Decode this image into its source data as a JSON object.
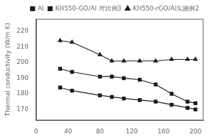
{
  "chart_data": {
    "type": "line",
    "ylabel": "Thermal conductivity (W/m K)",
    "x": [
      30,
      45,
      80,
      95,
      110,
      130,
      150,
      170,
      190,
      200
    ],
    "series": [
      {
        "name": "Al",
        "color": "#1a1a1a",
        "marker": "square",
        "values": [
          184,
          182,
          179,
          178,
          177,
          176,
          175,
          173,
          171,
          170
        ]
      },
      {
        "name": "KH550-GO/Al 对比例3",
        "color": "#1a1a1a",
        "marker": "square",
        "values": [
          196,
          194,
          191,
          191,
          190,
          189,
          186,
          180,
          175,
          174
        ]
      },
      {
        "name": "KH550-rGO/Al实施例2",
        "color": "#1a1a1a",
        "marker": "triangle",
        "values": [
          214,
          213,
          205,
          201,
          201,
          201,
          201,
          202,
          202,
          202
        ]
      }
    ],
    "xlim": [
      0,
      210
    ],
    "ylim": [
      163,
      228
    ],
    "xticks": [
      0,
      40,
      80,
      120,
      160,
      200
    ],
    "yticks": [
      170,
      180,
      190,
      200,
      210,
      220
    ],
    "grid": false,
    "legend": "upper right"
  }
}
